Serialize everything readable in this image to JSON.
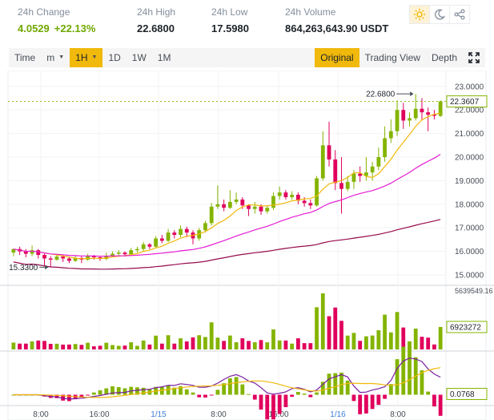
{
  "stats": [
    {
      "label": "24h Change",
      "value": "4.0529",
      "extra": "+22.13%",
      "color": "green"
    },
    {
      "label": "24h High",
      "value": "22.6800"
    },
    {
      "label": "24h Low",
      "value": "17.5980"
    },
    {
      "label": "24h Volume",
      "value": "864,263,643.90 USDT"
    }
  ],
  "toolbar": {
    "time": "Time",
    "minute": "m",
    "interval": "1H",
    "day": "1D",
    "week": "1W",
    "month": "1M",
    "original": "Original",
    "tradingview": "Trading View",
    "depth": "Depth"
  },
  "colors": {
    "up": "#84b400",
    "down": "#e0005c",
    "ma_short": "#f0b90b",
    "ma_mid": "#e41cd4",
    "ma_long": "#960b4d",
    "accent": "#f0b90b"
  },
  "chart_data": {
    "type": "candlestick",
    "price_axis_ticks": [
      "23.0000",
      "22.0000",
      "21.0000",
      "20.0000",
      "19.0000",
      "18.0000",
      "17.0000",
      "16.0000",
      "15.0000"
    ],
    "ylim": [
      14.9,
      23.4
    ],
    "last_price_label": "22.3607",
    "high_marker": "22.6800",
    "low_marker": "15.3300",
    "volume_max_label": "5639549.16",
    "volume_last_label": "6923272",
    "macd_last_label": "0.0768",
    "time_labels": [
      "8:00",
      "16:00",
      "1/15",
      "8:00",
      "16:00",
      "1/16",
      "8:00"
    ],
    "candles": [
      [
        15.95,
        16.1,
        16.12,
        15.8
      ],
      [
        16.1,
        16.0,
        16.2,
        15.85
      ],
      [
        16.0,
        15.9,
        16.1,
        15.75
      ],
      [
        15.9,
        16.05,
        16.25,
        15.8
      ],
      [
        16.05,
        15.85,
        16.1,
        15.7
      ],
      [
        15.85,
        15.7,
        15.9,
        15.4
      ],
      [
        15.7,
        15.65,
        15.8,
        15.33
      ],
      [
        15.65,
        15.78,
        15.85,
        15.6
      ],
      [
        15.78,
        15.7,
        15.85,
        15.55
      ],
      [
        15.7,
        15.6,
        15.75,
        15.5
      ],
      [
        15.6,
        15.72,
        15.8,
        15.55
      ],
      [
        15.72,
        15.65,
        15.8,
        15.5
      ],
      [
        15.65,
        15.8,
        15.9,
        15.6
      ],
      [
        15.8,
        15.75,
        15.85,
        15.65
      ],
      [
        15.75,
        15.68,
        15.8,
        15.6
      ],
      [
        15.68,
        15.82,
        15.95,
        15.62
      ],
      [
        15.82,
        15.9,
        16.0,
        15.75
      ],
      [
        15.9,
        15.95,
        16.05,
        15.8
      ],
      [
        15.95,
        15.88,
        16.0,
        15.78
      ],
      [
        15.88,
        16.05,
        16.15,
        15.85
      ],
      [
        16.05,
        16.1,
        16.2,
        15.95
      ],
      [
        16.1,
        16.3,
        16.4,
        16.0
      ],
      [
        16.3,
        16.2,
        16.35,
        16.1
      ],
      [
        16.2,
        16.55,
        16.65,
        16.15
      ],
      [
        16.55,
        16.45,
        16.7,
        16.35
      ],
      [
        16.45,
        16.8,
        16.95,
        16.4
      ],
      [
        16.8,
        16.7,
        16.9,
        16.55
      ],
      [
        16.7,
        16.95,
        17.1,
        16.6
      ],
      [
        16.95,
        16.8,
        17.05,
        16.6
      ],
      [
        16.8,
        16.55,
        16.9,
        16.3
      ],
      [
        16.55,
        16.9,
        17.0,
        16.45
      ],
      [
        16.9,
        17.2,
        17.3,
        16.8
      ],
      [
        17.2,
        17.9,
        18.05,
        17.1
      ],
      [
        17.9,
        18.0,
        18.8,
        17.8
      ],
      [
        18.0,
        17.85,
        18.2,
        17.7
      ],
      [
        17.85,
        18.1,
        18.6,
        17.8
      ],
      [
        18.1,
        18.2,
        18.5,
        18.0
      ],
      [
        18.2,
        17.95,
        18.3,
        17.8
      ],
      [
        17.95,
        17.8,
        18.0,
        17.5
      ],
      [
        17.8,
        17.9,
        18.1,
        17.6
      ],
      [
        17.9,
        17.7,
        18.0,
        17.55
      ],
      [
        17.7,
        17.85,
        17.95,
        17.6
      ],
      [
        17.85,
        18.35,
        18.5,
        17.75
      ],
      [
        18.35,
        18.5,
        18.75,
        18.2
      ],
      [
        18.5,
        18.3,
        18.6,
        18.2
      ],
      [
        18.3,
        18.4,
        18.55,
        18.2
      ],
      [
        18.4,
        18.15,
        18.5,
        18.0
      ],
      [
        18.15,
        18.05,
        18.3,
        17.9
      ],
      [
        18.05,
        17.95,
        18.2,
        17.8
      ],
      [
        17.95,
        19.1,
        19.2,
        17.9
      ],
      [
        19.1,
        20.5,
        21.1,
        19.0
      ],
      [
        20.5,
        19.9,
        21.5,
        19.6
      ],
      [
        19.9,
        18.9,
        20.3,
        18.6
      ],
      [
        18.9,
        18.65,
        20.0,
        17.6
      ],
      [
        18.65,
        18.95,
        19.2,
        18.55
      ],
      [
        18.95,
        19.3,
        19.45,
        18.65
      ],
      [
        19.3,
        19.2,
        19.6,
        18.95
      ],
      [
        19.2,
        19.35,
        20.0,
        19.0
      ],
      [
        19.35,
        19.6,
        19.8,
        19.0
      ],
      [
        19.6,
        20.0,
        20.4,
        19.45
      ],
      [
        20.0,
        20.8,
        21.3,
        19.8
      ],
      [
        20.8,
        21.1,
        21.6,
        20.6
      ],
      [
        21.1,
        22.0,
        22.4,
        20.9
      ],
      [
        22.0,
        21.55,
        22.3,
        21.2
      ],
      [
        21.55,
        21.65,
        21.9,
        21.3
      ],
      [
        21.65,
        22.05,
        22.68,
        21.55
      ],
      [
        22.05,
        21.9,
        22.5,
        21.55
      ],
      [
        21.9,
        21.8,
        22.1,
        21.1
      ],
      [
        21.8,
        21.75,
        22.0,
        21.6
      ],
      [
        21.75,
        22.3607,
        22.4,
        21.7
      ]
    ]
  }
}
